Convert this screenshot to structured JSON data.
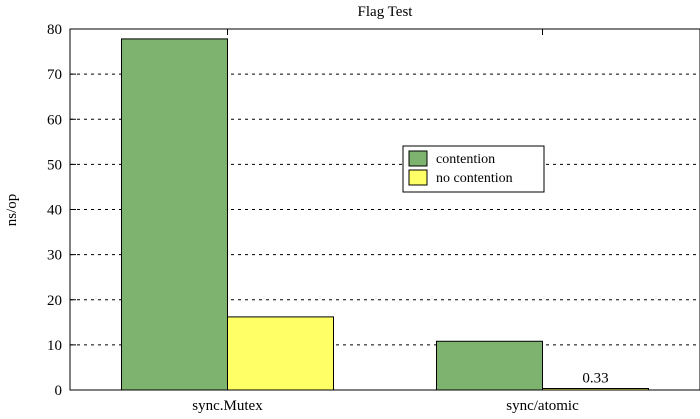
{
  "chart_data": {
    "type": "bar",
    "title": "Flag Test",
    "xlabel": "",
    "ylabel": "ns/op",
    "categories": [
      "sync.Mutex",
      "sync/atomic"
    ],
    "series": [
      {
        "name": "contention",
        "values": [
          77.8,
          10.8
        ],
        "color": "#7db36f"
      },
      {
        "name": "no contention",
        "values": [
          16.2,
          0.33
        ],
        "color": "#ffff66"
      }
    ],
    "annotations": [
      {
        "category": "sync/atomic",
        "series": "no contention",
        "text": "0.33"
      }
    ],
    "ylim": [
      0,
      80
    ],
    "yticks": [
      0,
      10,
      20,
      30,
      40,
      50,
      60,
      70,
      80
    ],
    "grid": true,
    "legend_position": "center-right"
  }
}
